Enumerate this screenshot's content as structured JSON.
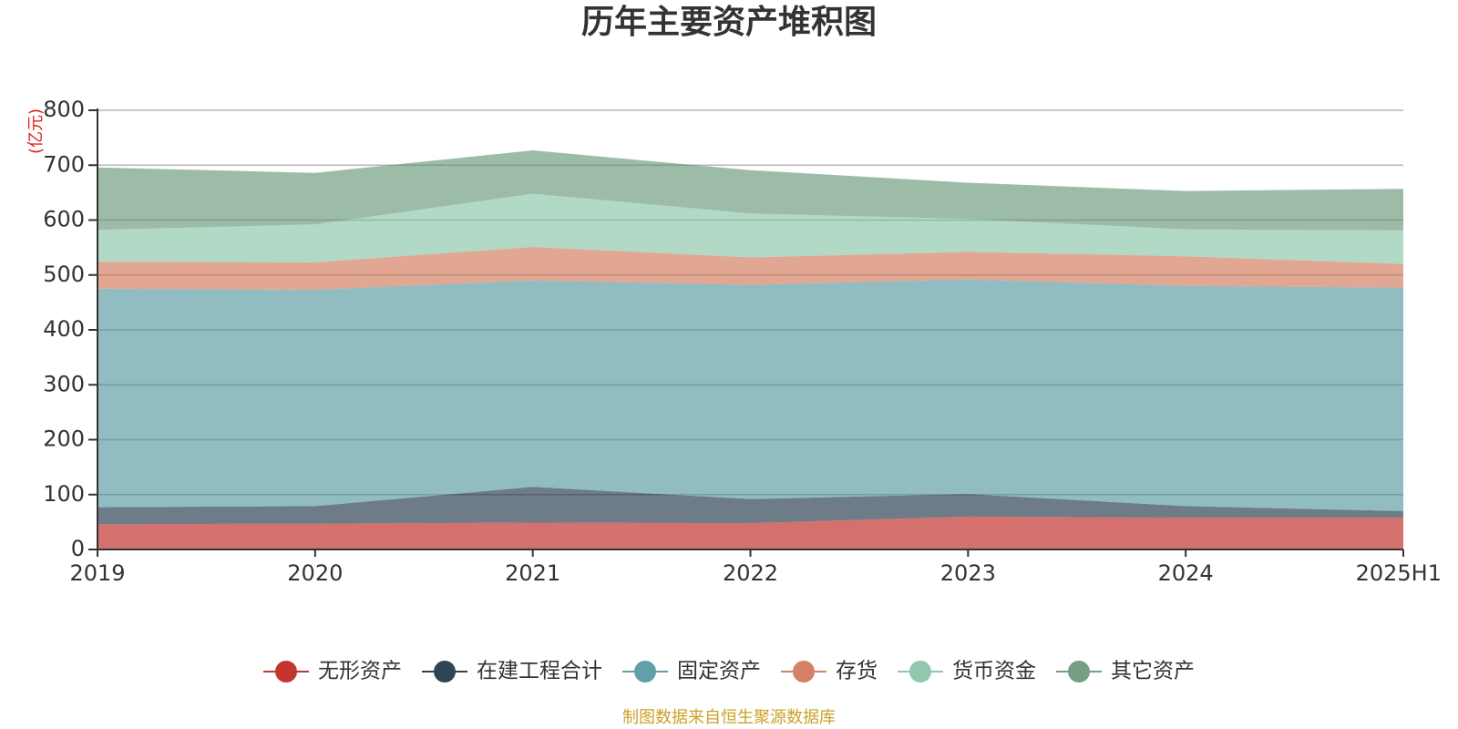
{
  "chart_data": {
    "type": "area",
    "stacked": true,
    "title": "历年主要资产堆积图",
    "unit_label": "(亿元)",
    "source_note": "制图数据来自恒生聚源数据库",
    "categories": [
      "2019",
      "2020",
      "2021",
      "2022",
      "2023",
      "2024",
      "2025H1"
    ],
    "ylim": [
      0,
      800
    ],
    "yticks": [
      0,
      100,
      200,
      300,
      400,
      500,
      600,
      700,
      800
    ],
    "grid": true,
    "legend_position": "bottom",
    "series": [
      {
        "name": "无形资产",
        "color": "#c23531",
        "values": [
          46,
          47,
          49,
          48,
          60,
          58,
          58
        ]
      },
      {
        "name": "在建工程合计",
        "color": "#2f4554",
        "values": [
          31,
          32,
          65,
          44,
          41,
          21,
          12
        ]
      },
      {
        "name": "固定资产",
        "color": "#61a0a8",
        "values": [
          398,
          394,
          376,
          390,
          391,
          401,
          407
        ]
      },
      {
        "name": "存货",
        "color": "#d48265",
        "values": [
          49,
          50,
          61,
          50,
          50,
          54,
          43
        ]
      },
      {
        "name": "货币资金",
        "color": "#91c7ae",
        "values": [
          58,
          69,
          97,
          80,
          60,
          49,
          61
        ]
      },
      {
        "name": "其它资产",
        "color": "#749f83",
        "values": [
          114,
          94,
          79,
          79,
          66,
          70,
          76
        ]
      }
    ]
  }
}
